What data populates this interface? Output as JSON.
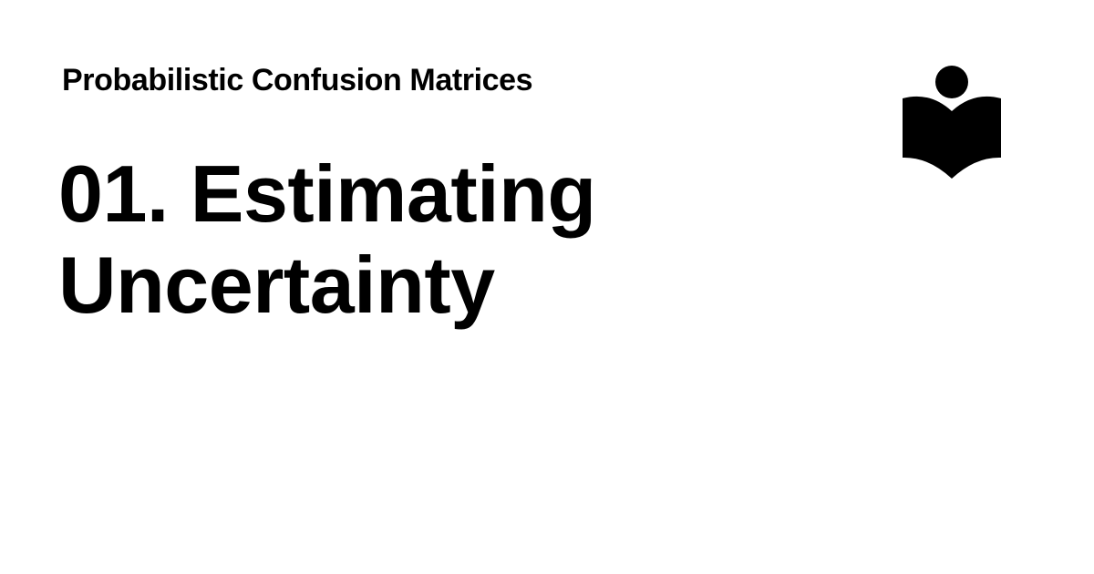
{
  "page": {
    "subtitle": "Probabilistic Confusion Matrices",
    "title": "01. Estimating Uncertainty"
  },
  "logo": {
    "icon": "reader-book-icon",
    "color": "#000000"
  },
  "background_color": "#ffffff"
}
